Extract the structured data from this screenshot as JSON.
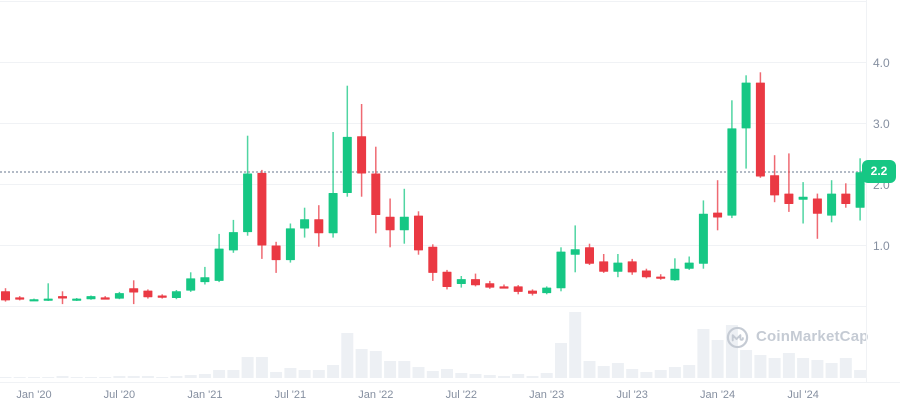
{
  "watermark": {
    "text": "CoinMarketCap"
  },
  "current_price": {
    "label": "2.2",
    "value": 2.2
  },
  "y_axis": {
    "side": "right",
    "ticks": [
      {
        "label": "4.0",
        "value": 4.0
      },
      {
        "label": "3.0",
        "value": 3.0
      },
      {
        "label": "2.0",
        "value": 2.0
      },
      {
        "label": "1.0",
        "value": 1.0
      }
    ],
    "grid_values": [
      0,
      1,
      2,
      3,
      4,
      5
    ]
  },
  "x_axis": {
    "ticks": [
      {
        "label": "Jan '20",
        "index": 2
      },
      {
        "label": "Jul '20",
        "index": 8
      },
      {
        "label": "Jan '21",
        "index": 14
      },
      {
        "label": "Jul '21",
        "index": 20
      },
      {
        "label": "Jan '22",
        "index": 26
      },
      {
        "label": "Jul '22",
        "index": 32
      },
      {
        "label": "Jan '23",
        "index": 38
      },
      {
        "label": "Jul '23",
        "index": 44
      },
      {
        "label": "Jan '24",
        "index": 50
      },
      {
        "label": "Jul '24",
        "index": 56
      }
    ]
  },
  "colors": {
    "up": "#16c784",
    "down": "#ea3943",
    "volume_bar": "#edf0f4",
    "grid_line": "#f0f2f5",
    "axis_text": "#858fa0",
    "price_line": "#b2bac6",
    "badge_text": "#ffffff",
    "watermark": "#c5cbd4",
    "background": "#ffffff"
  },
  "chart_data": {
    "type": "candlestick",
    "title": "",
    "xlabel": "",
    "ylabel": "",
    "ylim": [
      0,
      5
    ],
    "legend": "none",
    "grid": "horizontal",
    "months": [
      "2019-11",
      "2019-12",
      "2020-01",
      "2020-02",
      "2020-03",
      "2020-04",
      "2020-05",
      "2020-06",
      "2020-07",
      "2020-08",
      "2020-09",
      "2020-10",
      "2020-11",
      "2020-12",
      "2021-01",
      "2021-02",
      "2021-03",
      "2021-04",
      "2021-05",
      "2021-06",
      "2021-07",
      "2021-08",
      "2021-09",
      "2021-10",
      "2021-11",
      "2021-12",
      "2022-01",
      "2022-02",
      "2022-03",
      "2022-04",
      "2022-05",
      "2022-06",
      "2022-07",
      "2022-08",
      "2022-09",
      "2022-10",
      "2022-11",
      "2022-12",
      "2023-01",
      "2023-02",
      "2023-03",
      "2023-04",
      "2023-05",
      "2023-06",
      "2023-07",
      "2023-08",
      "2023-09",
      "2023-10",
      "2023-11",
      "2023-12",
      "2024-01",
      "2024-02",
      "2024-03",
      "2024-04",
      "2024-05",
      "2024-06",
      "2024-07",
      "2024-08",
      "2024-09",
      "2024-10",
      "2024-11"
    ],
    "ohlc": [
      [
        0.25,
        0.3,
        0.08,
        0.1
      ],
      [
        0.15,
        0.17,
        0.1,
        0.12
      ],
      [
        0.1,
        0.13,
        0.09,
        0.12
      ],
      [
        0.1,
        0.38,
        0.09,
        0.13
      ],
      [
        0.17,
        0.25,
        0.04,
        0.13
      ],
      [
        0.11,
        0.14,
        0.09,
        0.13
      ],
      [
        0.12,
        0.18,
        0.11,
        0.17
      ],
      [
        0.15,
        0.17,
        0.12,
        0.13
      ],
      [
        0.13,
        0.24,
        0.12,
        0.22
      ],
      [
        0.3,
        0.43,
        0.04,
        0.23
      ],
      [
        0.26,
        0.28,
        0.13,
        0.15
      ],
      [
        0.18,
        0.2,
        0.13,
        0.15
      ],
      [
        0.14,
        0.27,
        0.12,
        0.25
      ],
      [
        0.26,
        0.56,
        0.24,
        0.46
      ],
      [
        0.4,
        0.65,
        0.36,
        0.48
      ],
      [
        0.42,
        1.19,
        0.4,
        0.95
      ],
      [
        0.92,
        1.42,
        0.88,
        1.22
      ],
      [
        1.22,
        2.8,
        1.16,
        2.18
      ],
      [
        2.19,
        2.24,
        0.78,
        1.0
      ],
      [
        1.0,
        1.06,
        0.55,
        0.76
      ],
      [
        0.76,
        1.36,
        0.72,
        1.28
      ],
      [
        1.28,
        1.62,
        1.13,
        1.43
      ],
      [
        1.43,
        1.66,
        0.98,
        1.2
      ],
      [
        1.2,
        2.86,
        1.13,
        1.86
      ],
      [
        1.86,
        3.62,
        1.8,
        2.78
      ],
      [
        2.79,
        3.32,
        1.8,
        2.18
      ],
      [
        2.18,
        2.62,
        1.2,
        1.5
      ],
      [
        1.47,
        1.77,
        0.97,
        1.25
      ],
      [
        1.25,
        1.93,
        1.03,
        1.47
      ],
      [
        1.49,
        1.56,
        0.85,
        0.92
      ],
      [
        0.98,
        1.02,
        0.42,
        0.55
      ],
      [
        0.57,
        0.6,
        0.28,
        0.32
      ],
      [
        0.37,
        0.5,
        0.31,
        0.45
      ],
      [
        0.45,
        0.54,
        0.33,
        0.35
      ],
      [
        0.38,
        0.42,
        0.29,
        0.31
      ],
      [
        0.33,
        0.36,
        0.3,
        0.32
      ],
      [
        0.33,
        0.35,
        0.2,
        0.24
      ],
      [
        0.26,
        0.28,
        0.18,
        0.21
      ],
      [
        0.22,
        0.33,
        0.2,
        0.31
      ],
      [
        0.3,
        0.97,
        0.25,
        0.9
      ],
      [
        0.85,
        1.33,
        0.56,
        0.94
      ],
      [
        0.97,
        1.03,
        0.68,
        0.7
      ],
      [
        0.74,
        0.86,
        0.55,
        0.57
      ],
      [
        0.57,
        0.86,
        0.48,
        0.72
      ],
      [
        0.74,
        0.78,
        0.52,
        0.56
      ],
      [
        0.59,
        0.62,
        0.46,
        0.48
      ],
      [
        0.49,
        0.53,
        0.44,
        0.46
      ],
      [
        0.43,
        0.79,
        0.42,
        0.62
      ],
      [
        0.62,
        0.82,
        0.6,
        0.72
      ],
      [
        0.7,
        1.74,
        0.62,
        1.52
      ],
      [
        1.54,
        2.07,
        1.25,
        1.46
      ],
      [
        1.49,
        3.38,
        1.45,
        2.92
      ],
      [
        2.92,
        3.79,
        2.26,
        3.67
      ],
      [
        3.67,
        3.84,
        2.11,
        2.13
      ],
      [
        2.15,
        2.48,
        1.71,
        1.82
      ],
      [
        1.85,
        2.51,
        1.55,
        1.68
      ],
      [
        1.75,
        2.04,
        1.36,
        1.8
      ],
      [
        1.77,
        1.85,
        1.11,
        1.52
      ],
      [
        1.49,
        2.07,
        1.38,
        1.85
      ],
      [
        1.85,
        2.02,
        1.62,
        1.68
      ],
      [
        1.62,
        2.43,
        1.41,
        2.2
      ]
    ],
    "volume_rel": [
      1,
      1,
      1,
      1,
      2,
      1,
      1,
      1,
      2,
      2,
      2,
      1,
      2,
      3,
      4,
      8,
      8,
      21,
      21,
      6,
      10,
      8,
      8,
      13,
      45,
      29,
      27,
      17,
      17,
      11,
      7,
      9,
      5,
      4,
      3,
      2,
      4,
      2,
      5,
      35,
      66,
      17,
      12,
      15,
      9,
      6,
      8,
      11,
      13,
      49,
      38,
      53,
      28,
      23,
      20,
      25,
      20,
      18,
      15,
      20,
      8
    ]
  }
}
